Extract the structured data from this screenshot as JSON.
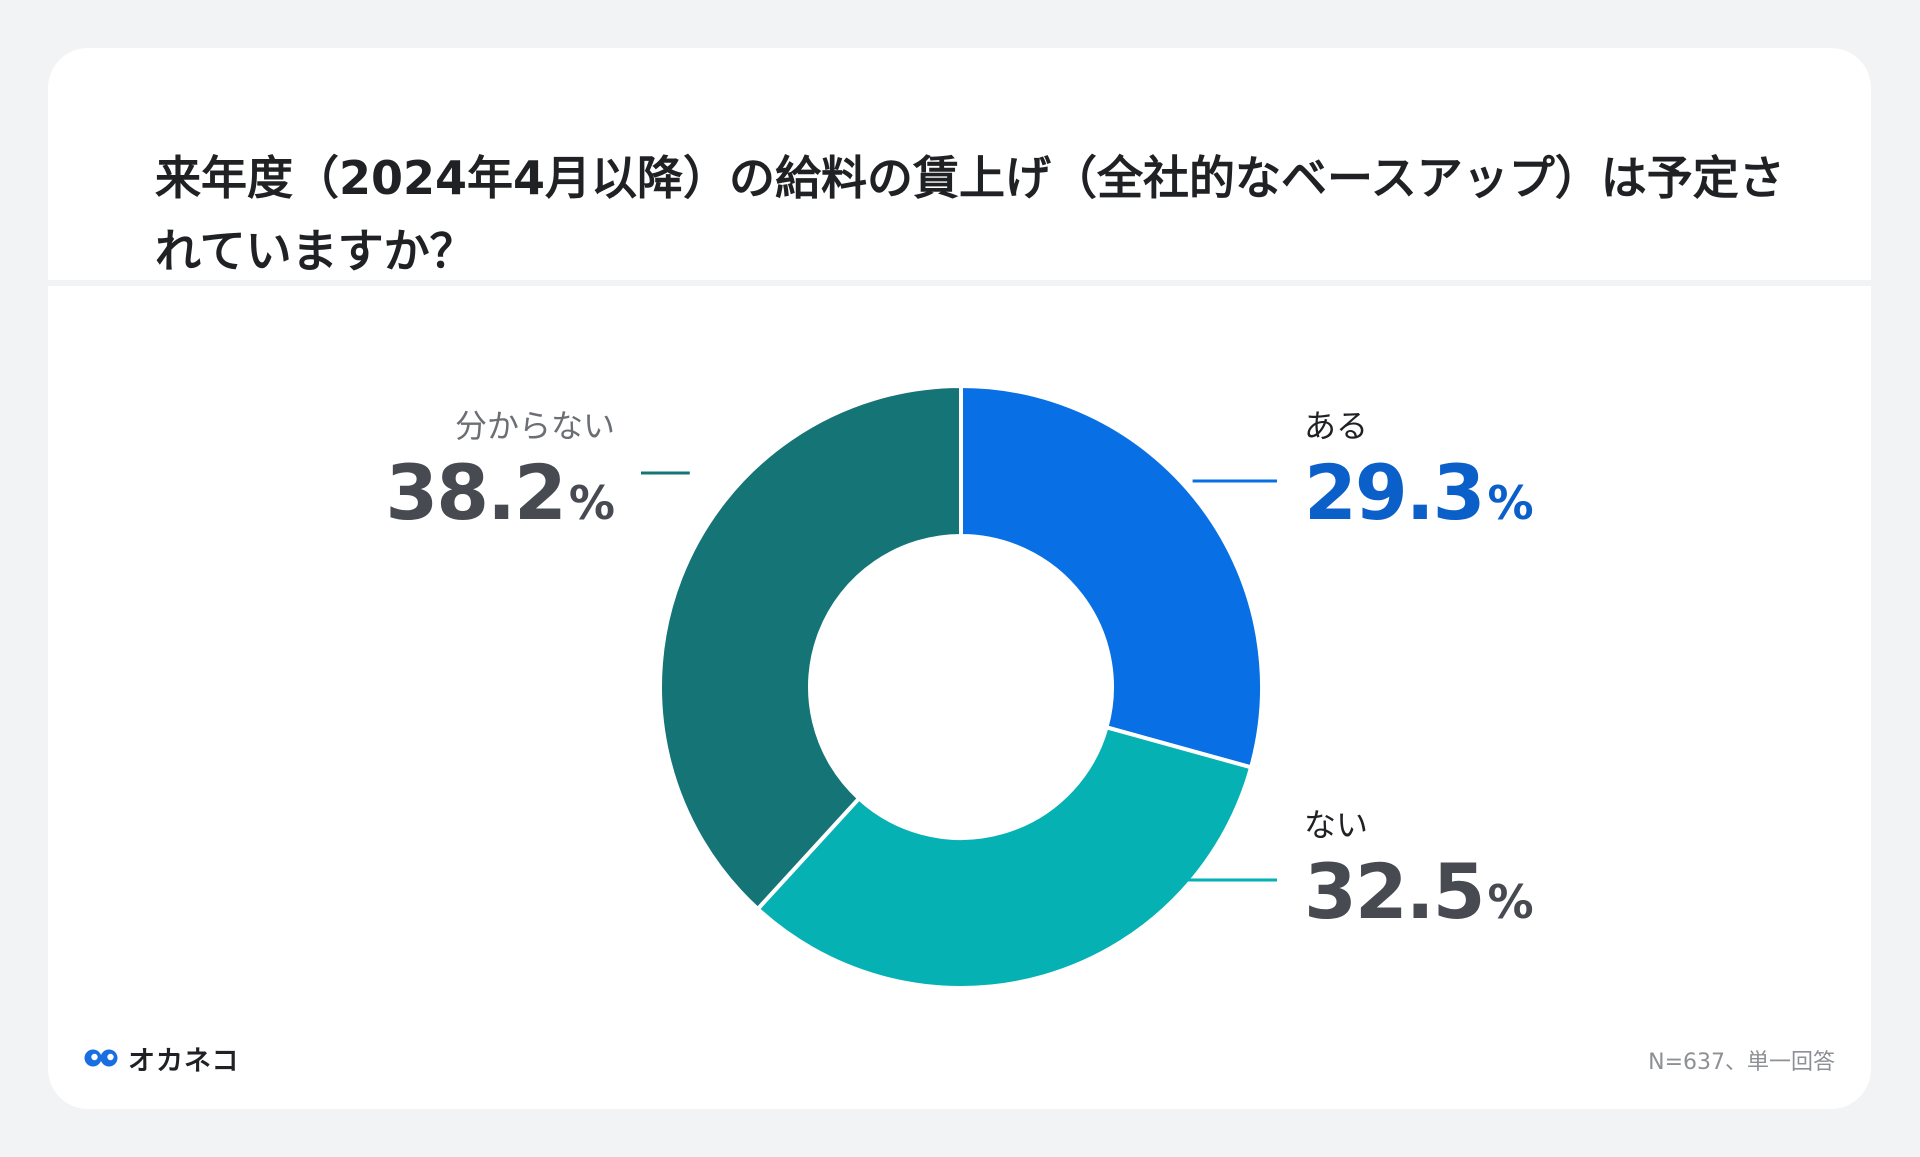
{
  "title": "来年度（2024年4月以降）の給料の賃上げ（全社的なベースアップ）は予定されていますか？",
  "brand": {
    "name": "オカネコ",
    "icon": "okaneko-logo-icon",
    "color": "#1a6fe0"
  },
  "footnote": "N=637、単一回答",
  "chart_data": {
    "type": "pie",
    "variant": "donut",
    "unit": "%",
    "slices": [
      {
        "label": "ある",
        "value": 29.3,
        "value_text": "29.3",
        "color": "#0870e4",
        "label_color": "#0b5fc9"
      },
      {
        "label": "ない",
        "value": 32.5,
        "value_text": "32.5",
        "color": "#05b1b3",
        "label_color": "#474b51"
      },
      {
        "label": "分からない",
        "value": 38.2,
        "value_text": "38.2",
        "color": "#157476",
        "label_color": "#474b51"
      }
    ],
    "legend": "none"
  }
}
